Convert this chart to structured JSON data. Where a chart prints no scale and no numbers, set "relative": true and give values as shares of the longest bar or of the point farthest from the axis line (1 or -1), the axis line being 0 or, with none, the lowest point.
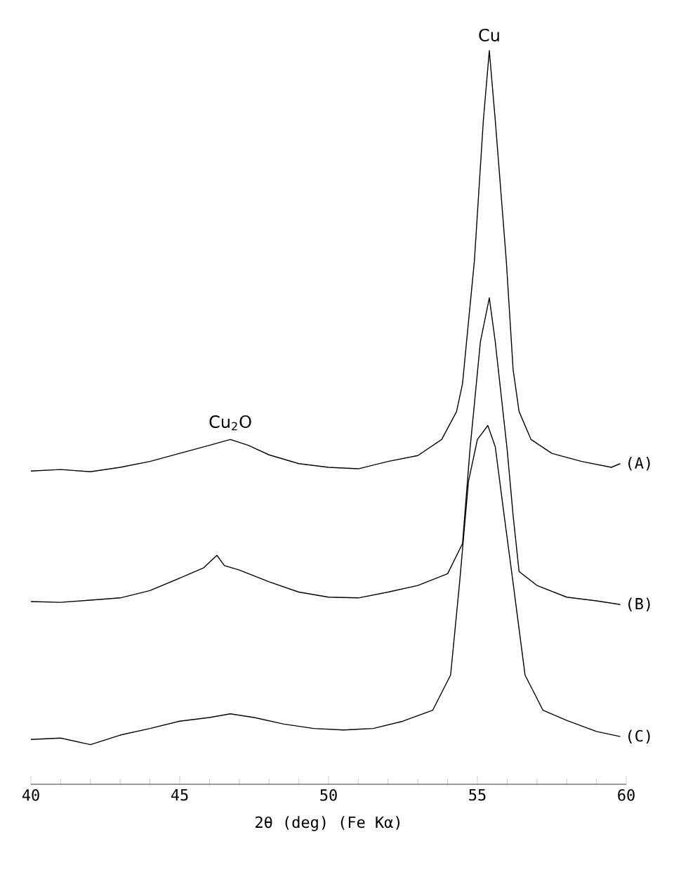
{
  "chart_data": {
    "type": "line",
    "relative": true,
    "xlabel": "2θ (deg)  (Fe Kα)",
    "xlim": [
      40,
      60
    ],
    "xticks": [
      40,
      45,
      50,
      55,
      60
    ],
    "tick_labels": "x",
    "legend": false,
    "grid": false,
    "marker": "none",
    "line_style": "solid",
    "annotations": [
      {
        "text": "Cu",
        "x": 55.4,
        "y": 1.0
      },
      {
        "text": "Cu$_{2}$O",
        "x": 46.7,
        "y": 0.47
      }
    ],
    "series": [
      {
        "name": "(A)",
        "color": "#000000",
        "x": [
          40,
          41,
          42,
          43,
          44,
          45,
          46,
          46.7,
          47.3,
          48,
          49,
          50,
          51,
          52,
          53,
          53.8,
          54.3,
          54.5,
          54.9,
          55.2,
          55.4,
          55.6,
          55.97,
          56.2,
          56.4,
          56.8,
          57.5,
          58.5,
          59.5,
          59.8
        ],
        "values": [
          0.427,
          0.429,
          0.426,
          0.432,
          0.44,
          0.451,
          0.462,
          0.47,
          0.462,
          0.449,
          0.437,
          0.432,
          0.43,
          0.44,
          0.448,
          0.47,
          0.508,
          0.546,
          0.714,
          0.905,
          1.0,
          0.905,
          0.714,
          0.565,
          0.508,
          0.47,
          0.451,
          0.44,
          0.432,
          0.437
        ]
      },
      {
        "name": "(B)",
        "color": "#000000",
        "x": [
          40,
          41,
          42,
          43,
          44,
          45,
          45.8,
          46.25,
          46.5,
          47,
          48,
          49,
          50,
          51,
          52,
          53,
          54,
          54.5,
          54.75,
          55.1,
          55.4,
          55.6,
          56.0,
          56.2,
          56.4,
          57,
          58,
          59,
          59.8
        ],
        "values": [
          0.249,
          0.248,
          0.251,
          0.254,
          0.264,
          0.281,
          0.295,
          0.312,
          0.298,
          0.292,
          0.276,
          0.262,
          0.255,
          0.254,
          0.262,
          0.271,
          0.287,
          0.328,
          0.456,
          0.603,
          0.663,
          0.603,
          0.456,
          0.366,
          0.29,
          0.271,
          0.255,
          0.25,
          0.245
        ]
      },
      {
        "name": "(C)",
        "color": "#000000",
        "x": [
          40,
          41,
          42,
          43,
          44,
          45,
          46,
          46.7,
          47.5,
          48.5,
          49.5,
          50.5,
          51.5,
          52.5,
          53.5,
          54.1,
          54.4,
          54.7,
          55.0,
          55.35,
          55.6,
          55.9,
          56.2,
          56.6,
          57.2,
          58,
          59,
          59.8
        ],
        "values": [
          0.061,
          0.063,
          0.054,
          0.067,
          0.076,
          0.086,
          0.091,
          0.096,
          0.091,
          0.082,
          0.076,
          0.074,
          0.076,
          0.086,
          0.101,
          0.149,
          0.274,
          0.413,
          0.47,
          0.489,
          0.46,
          0.366,
          0.274,
          0.149,
          0.101,
          0.087,
          0.072,
          0.065
        ]
      }
    ]
  }
}
